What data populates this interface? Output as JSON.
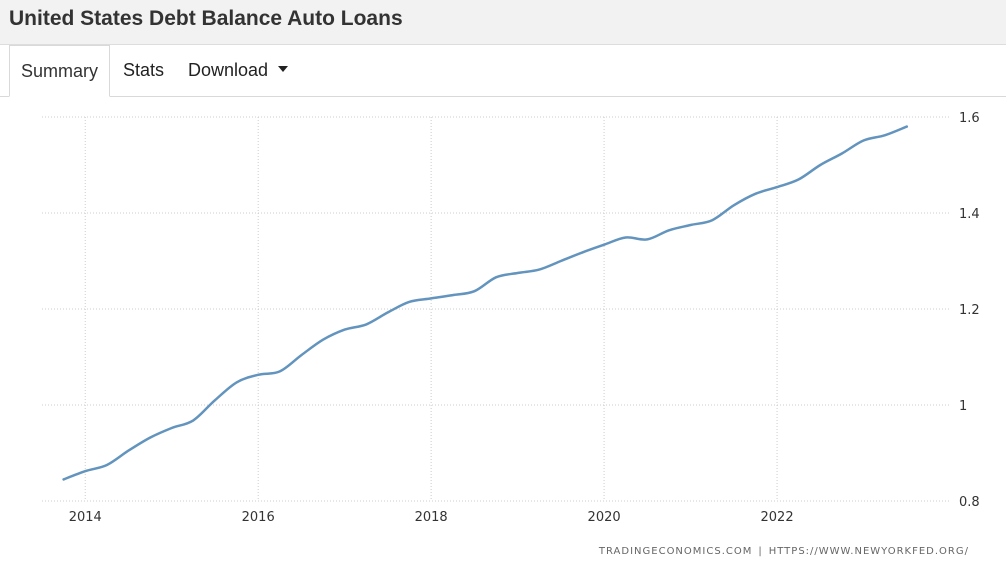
{
  "header": {
    "title": "United States Debt Balance Auto Loans"
  },
  "tabs": {
    "summary": "Summary",
    "stats": "Stats",
    "download": "Download"
  },
  "source": {
    "left": "TRADINGECONOMICS.COM",
    "separator": "|",
    "right": "HTTPS://WWW.NEWYORKFED.ORG/"
  },
  "colors": {
    "line": "#6294be",
    "grid": "#cccccc",
    "tick_text": "#333333"
  },
  "chart_data": {
    "type": "line",
    "title": "",
    "xlabel": "",
    "ylabel": "",
    "x_ticks": [
      "2014",
      "2016",
      "2018",
      "2020",
      "2022"
    ],
    "y_ticks": [
      "0.8",
      "1",
      "1.2",
      "1.4",
      "1.6"
    ],
    "xlim": [
      2013.5,
      2024.0
    ],
    "ylim": [
      0.8,
      1.6
    ],
    "grid": true,
    "y_axis_side": "right",
    "series": [
      {
        "x": [
          2013.75,
          2014.0,
          2014.25,
          2014.5,
          2014.75,
          2015.0,
          2015.25,
          2015.5,
          2015.75,
          2016.0,
          2016.25,
          2016.5,
          2016.75,
          2017.0,
          2017.25,
          2017.5,
          2017.75,
          2018.0,
          2018.25,
          2018.5,
          2018.75,
          2019.0,
          2019.25,
          2019.5,
          2019.75,
          2020.0,
          2020.25,
          2020.5,
          2020.75,
          2021.0,
          2021.25,
          2021.5,
          2021.75,
          2022.0,
          2022.25,
          2022.5,
          2022.75,
          2023.0,
          2023.25,
          2023.5
        ],
        "values": [
          0.845,
          0.862,
          0.875,
          0.905,
          0.932,
          0.952,
          0.968,
          1.01,
          1.047,
          1.063,
          1.07,
          1.104,
          1.136,
          1.157,
          1.168,
          1.193,
          1.215,
          1.222,
          1.229,
          1.237,
          1.266,
          1.275,
          1.282,
          1.3,
          1.318,
          1.334,
          1.349,
          1.345,
          1.364,
          1.375,
          1.385,
          1.416,
          1.44,
          1.454,
          1.47,
          1.5,
          1.524,
          1.551,
          1.562,
          1.58
        ]
      }
    ]
  }
}
